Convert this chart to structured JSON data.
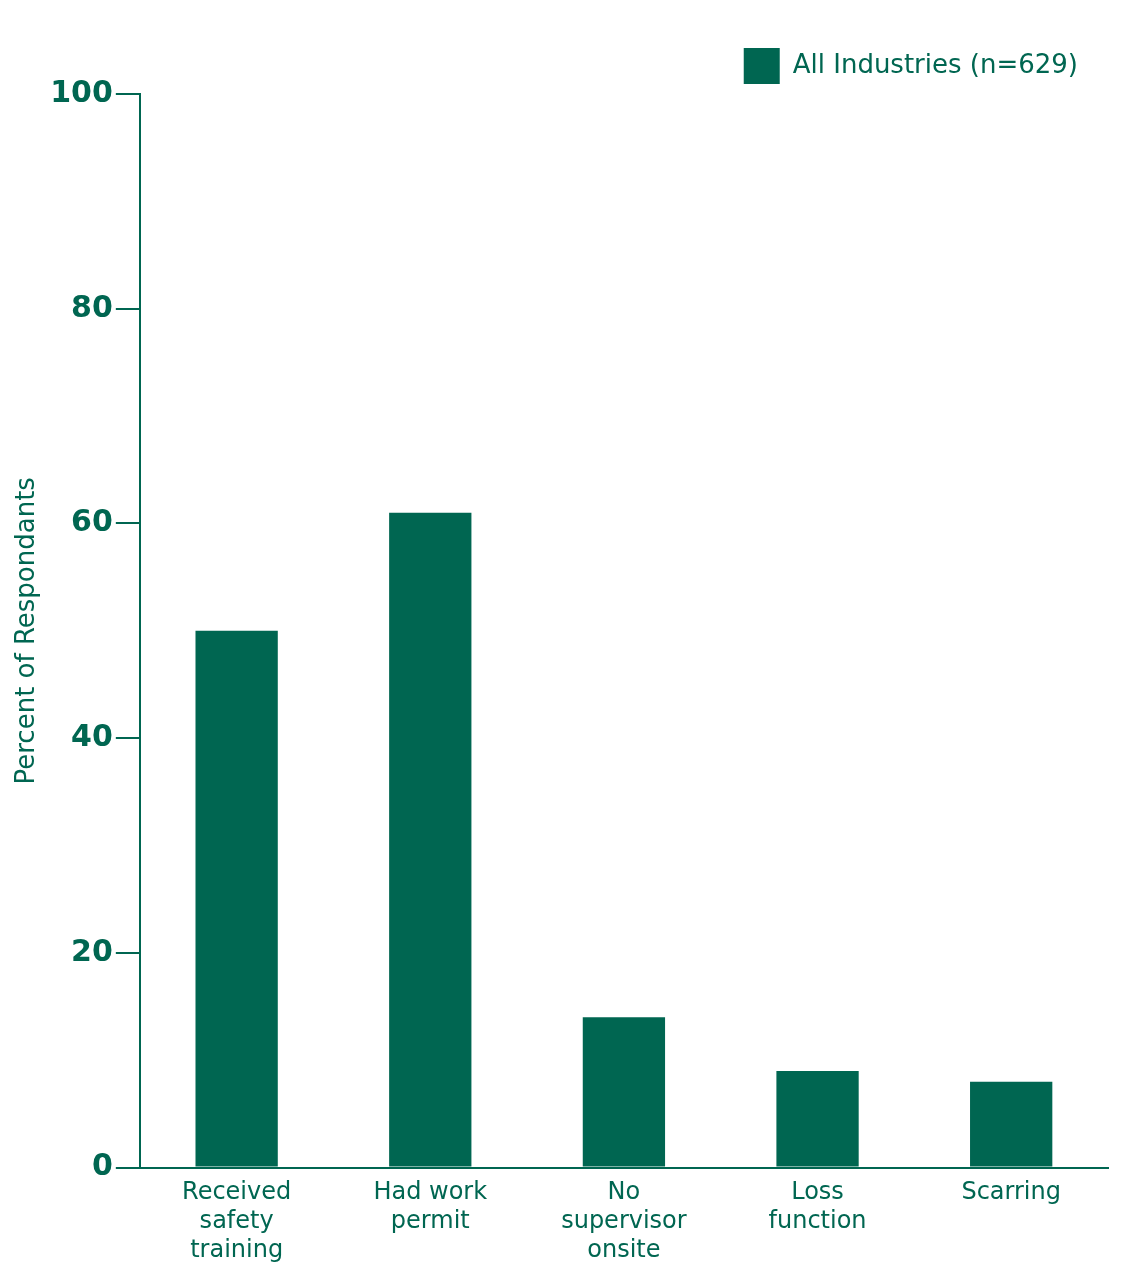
{
  "chart_data": {
    "type": "bar",
    "ylabel": "Percent of Respondants",
    "categories": [
      "Received safety training",
      "Had work permit",
      "No supervisor onsite",
      "Loss function",
      "Scarring"
    ],
    "series": [
      {
        "name": "All Industries (n=629)",
        "color": "#006651",
        "values": [
          50,
          61,
          14,
          9,
          8
        ]
      }
    ],
    "ylim": [
      0,
      100
    ],
    "yticks": [
      0,
      20,
      40,
      60,
      80,
      100
    ],
    "grid": false,
    "legend": "top right"
  }
}
